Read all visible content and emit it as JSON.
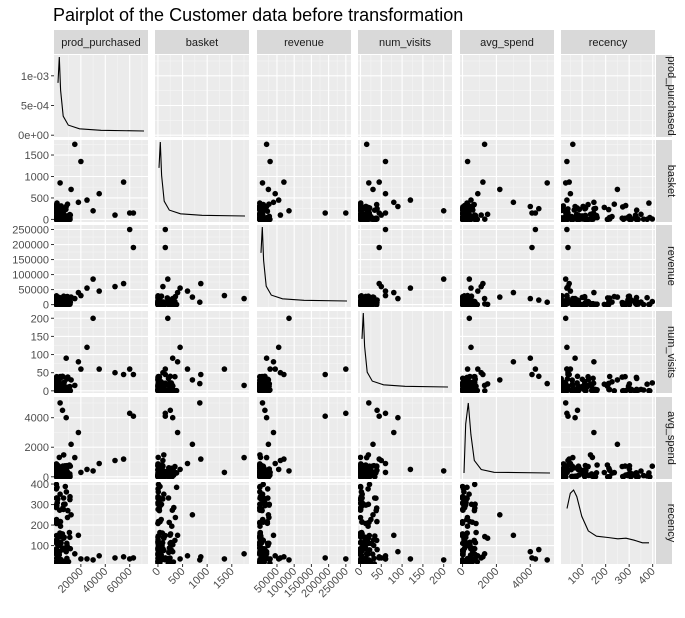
{
  "chart_data": {
    "type": "scatter",
    "title": "Pairplot of the Customer data before transformation",
    "variables": [
      "prod_purchased",
      "basket",
      "revenue",
      "num_visits",
      "avg_spend",
      "recency"
    ],
    "diagonal": "density",
    "grid": true,
    "axes": {
      "prod_purchased": {
        "ylim": [
          -3e-05,
          0.00135
        ],
        "yticks": [
          0,
          0.0005,
          0.001
        ],
        "ytick_labels": [
          "0e+00",
          "5e-04",
          "1e-03"
        ],
        "xlim": [
          -2000,
          75000
        ],
        "xticks": [
          20000,
          40000,
          60000
        ],
        "xtick_labels": [
          "20000",
          "40000",
          "60000"
        ]
      },
      "basket": {
        "range": [
          -60,
          1850
        ],
        "ticks": [
          0,
          500,
          1000,
          1500
        ],
        "tick_labels": [
          "0",
          "500",
          "1000",
          "1500"
        ]
      },
      "revenue": {
        "range": [
          -8000,
          265000
        ],
        "yticks": [
          0,
          50000,
          100000,
          150000,
          200000,
          250000
        ],
        "ytick_labels": [
          "0",
          "50000",
          "100000",
          "150000",
          "200000",
          "250000"
        ],
        "xticks": [
          50000,
          100000,
          150000,
          200000,
          250000
        ],
        "xtick_labels": [
          "50000",
          "100000",
          "150000",
          "200000",
          "250000"
        ]
      },
      "num_visits": {
        "range": [
          -6,
          220
        ],
        "ticks": [
          0,
          50,
          100,
          150,
          200
        ],
        "tick_labels": [
          "0",
          "50",
          "100",
          "150",
          "200"
        ]
      },
      "avg_spend": {
        "range": [
          -150,
          5400
        ],
        "yticks": [
          0,
          2000,
          4000
        ],
        "ytick_labels": [
          "0",
          "2000",
          "4000"
        ],
        "xticks": [
          0,
          2000,
          4000
        ],
        "xtick_labels": [
          "0",
          "2000",
          "4000"
        ]
      },
      "recency": {
        "range": [
          10,
          410
        ],
        "yticks": [
          100,
          200,
          300,
          400
        ],
        "ytick_labels": [
          "100",
          "200",
          "300",
          "400"
        ],
        "xticks": [
          100,
          200,
          300,
          400
        ],
        "xtick_labels": [
          "100",
          "200",
          "300",
          "400"
        ]
      }
    },
    "outliers": [
      {
        "prod_purchased": 63000,
        "basket": 150,
        "revenue": 190000,
        "num_visits": 45,
        "avg_spend": 4100,
        "recency": 40
      },
      {
        "prod_purchased": 60000,
        "basket": 150,
        "revenue": 250000,
        "num_visits": 60,
        "avg_spend": 4300,
        "recency": 35
      },
      {
        "prod_purchased": 55000,
        "basket": 870,
        "revenue": 70000,
        "num_visits": 45,
        "avg_spend": 1200,
        "recency": 45
      },
      {
        "prod_purchased": 48000,
        "basket": 100,
        "revenue": 60000,
        "num_visits": 50,
        "avg_spend": 1100,
        "recency": 40
      },
      {
        "prod_purchased": 30000,
        "basket": 200,
        "revenue": 85000,
        "num_visits": 200,
        "avg_spend": 400,
        "recency": 30
      },
      {
        "prod_purchased": 25000,
        "basket": 450,
        "revenue": 55000,
        "num_visits": 120,
        "avg_spend": 500,
        "recency": 35
      },
      {
        "prod_purchased": 20000,
        "basket": 1350,
        "revenue": 30000,
        "num_visits": 60,
        "avg_spend": 300,
        "recency": 35
      },
      {
        "prod_purchased": 15000,
        "basket": 1750,
        "revenue": 20000,
        "num_visits": 15,
        "avg_spend": 1300,
        "recency": 60
      },
      {
        "prod_purchased": 35000,
        "basket": 600,
        "revenue": 45000,
        "num_visits": 60,
        "avg_spend": 900,
        "recency": 50
      },
      {
        "prod_purchased": 8000,
        "basket": 300,
        "revenue": 20000,
        "num_visits": 90,
        "avg_spend": 4000,
        "recency": 70
      },
      {
        "prod_purchased": 5000,
        "basket": 250,
        "revenue": 15000,
        "num_visits": 40,
        "avg_spend": 4500,
        "recency": 80
      },
      {
        "prod_purchased": 12000,
        "basket": 700,
        "revenue": 25000,
        "num_visits": 30,
        "avg_spend": 2200,
        "recency": 250
      },
      {
        "prod_purchased": 18000,
        "basket": 400,
        "revenue": 40000,
        "num_visits": 80,
        "avg_spend": 3000,
        "recency": 150
      },
      {
        "prod_purchased": 3000,
        "basket": 850,
        "revenue": 8000,
        "num_visits": 20,
        "avg_spend": 5000,
        "recency": 30
      }
    ],
    "main_cluster": {
      "prod_purchased": [
        0,
        12000
      ],
      "basket": [
        0,
        400
      ],
      "revenue": [
        0,
        30000
      ],
      "num_visits": [
        0,
        40
      ],
      "avg_spend": [
        0,
        1500
      ],
      "recency": [
        10,
        400
      ]
    }
  }
}
